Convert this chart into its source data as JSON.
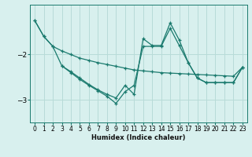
{
  "xlabel": "Humidex (Indice chaleur)",
  "background_color": "#d8f0ee",
  "grid_color": "#b8dbd8",
  "line_color": "#1a7a6e",
  "xlim": [
    -0.5,
    23.5
  ],
  "ylim": [
    -3.5,
    -0.9
  ],
  "yticks": [
    -3,
    -2
  ],
  "xticks": [
    0,
    1,
    2,
    3,
    4,
    5,
    6,
    7,
    8,
    9,
    10,
    11,
    12,
    13,
    14,
    15,
    16,
    17,
    18,
    19,
    20,
    21,
    22,
    23
  ],
  "series": [
    {
      "x": [
        0,
        1,
        2,
        3,
        4,
        5,
        6,
        7,
        8,
        9,
        10,
        11,
        12,
        13,
        14,
        15,
        16,
        17,
        18,
        19,
        20,
        21,
        22,
        23
      ],
      "y": [
        -1.25,
        -1.6,
        -1.82,
        -1.92,
        -2.0,
        -2.08,
        -2.13,
        -2.18,
        -2.22,
        -2.26,
        -2.3,
        -2.34,
        -2.36,
        -2.38,
        -2.4,
        -2.41,
        -2.42,
        -2.43,
        -2.44,
        -2.45,
        -2.46,
        -2.47,
        -2.48,
        -2.28
      ]
    },
    {
      "x": [
        0,
        1,
        2,
        3,
        4,
        5,
        6,
        7,
        8,
        9,
        10,
        11,
        12,
        13,
        14,
        15,
        16,
        17,
        18,
        19,
        20,
        21,
        22,
        23
      ],
      "y": [
        -1.25,
        -1.6,
        -1.82,
        -2.25,
        -2.38,
        -2.52,
        -2.66,
        -2.78,
        -2.88,
        -2.96,
        -2.68,
        -2.88,
        -1.65,
        -1.8,
        -1.8,
        -1.3,
        -1.68,
        -2.18,
        -2.52,
        -2.62,
        -2.62,
        -2.62,
        -2.62,
        -2.28
      ]
    },
    {
      "x": [
        3,
        4,
        5,
        6,
        7,
        8,
        9,
        10,
        11,
        12,
        13,
        14,
        15,
        16,
        17,
        18,
        19,
        20,
        21,
        22,
        23
      ],
      "y": [
        -2.25,
        -2.4,
        -2.55,
        -2.68,
        -2.8,
        -2.92,
        -3.08,
        -2.82,
        -2.68,
        -1.82,
        -1.82,
        -1.82,
        -1.42,
        -1.8,
        -2.18,
        -2.52,
        -2.62,
        -2.62,
        -2.62,
        -2.62,
        -2.28
      ]
    }
  ]
}
